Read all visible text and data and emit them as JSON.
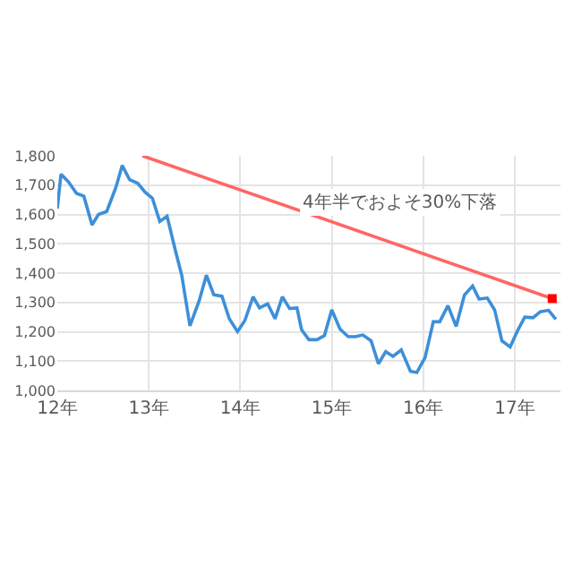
{
  "chart_data": {
    "type": "line",
    "xlim": [
      12,
      17.5
    ],
    "ylim": [
      1000,
      1800
    ],
    "xticks": [
      {
        "value": 12,
        "label": "12年"
      },
      {
        "value": 13,
        "label": "13年"
      },
      {
        "value": 14,
        "label": "14年"
      },
      {
        "value": 15,
        "label": "15年"
      },
      {
        "value": 16,
        "label": "16年"
      },
      {
        "value": 17,
        "label": "17年"
      }
    ],
    "yticks": [
      {
        "value": 1000,
        "label": "1,000"
      },
      {
        "value": 1100,
        "label": "1,100"
      },
      {
        "value": 1200,
        "label": "1,200"
      },
      {
        "value": 1300,
        "label": "1,300"
      },
      {
        "value": 1400,
        "label": "1,400"
      },
      {
        "value": 1500,
        "label": "1,500"
      },
      {
        "value": 1600,
        "label": "1,600"
      },
      {
        "value": 1700,
        "label": "1,700"
      },
      {
        "value": 1800,
        "label": "1,800"
      }
    ],
    "grid": true,
    "marker": "none",
    "line_style": "solid",
    "series": [
      {
        "color": "#3d8fd9",
        "x": [
          12.0,
          12.04,
          12.12,
          12.21,
          12.29,
          12.38,
          12.45,
          12.54,
          12.64,
          12.71,
          12.79,
          12.88,
          12.96,
          13.04,
          13.12,
          13.2,
          13.29,
          13.36,
          13.45,
          13.55,
          13.63,
          13.71,
          13.8,
          13.88,
          13.97,
          14.05,
          14.14,
          14.21,
          14.3,
          14.38,
          14.46,
          14.54,
          14.62,
          14.67,
          14.75,
          14.84,
          14.92,
          15.0,
          15.09,
          15.18,
          15.26,
          15.34,
          15.43,
          15.51,
          15.59,
          15.67,
          15.76,
          15.86,
          15.93,
          16.02,
          16.11,
          16.18,
          16.27,
          16.36,
          16.45,
          16.54,
          16.61,
          16.7,
          16.78,
          16.86,
          16.95,
          17.03,
          17.11,
          17.2,
          17.28,
          17.37,
          17.45
        ],
        "values": [
          1620,
          1737,
          1712,
          1672,
          1662,
          1564,
          1600,
          1610,
          1692,
          1767,
          1719,
          1706,
          1676,
          1655,
          1576,
          1594,
          1478,
          1393,
          1220,
          1305,
          1393,
          1326,
          1321,
          1244,
          1200,
          1238,
          1319,
          1281,
          1295,
          1244,
          1319,
          1279,
          1281,
          1207,
          1173,
          1173,
          1187,
          1275,
          1209,
          1183,
          1183,
          1189,
          1169,
          1091,
          1132,
          1116,
          1138,
          1065,
          1061,
          1112,
          1234,
          1234,
          1289,
          1218,
          1325,
          1356,
          1311,
          1315,
          1275,
          1169,
          1148,
          1203,
          1250,
          1248,
          1268,
          1273,
          1242
        ]
      },
      {
        "color": "#ff6666",
        "x": [
          12.93,
          17.41
        ],
        "values": [
          1800,
          1313
        ]
      },
      {
        "type": "scatter",
        "marker": "square",
        "color": "#ff0000",
        "x": [
          17.41
        ],
        "values": [
          1313
        ]
      }
    ],
    "annotations": [
      "4年半でおよそ30%下落"
    ]
  }
}
